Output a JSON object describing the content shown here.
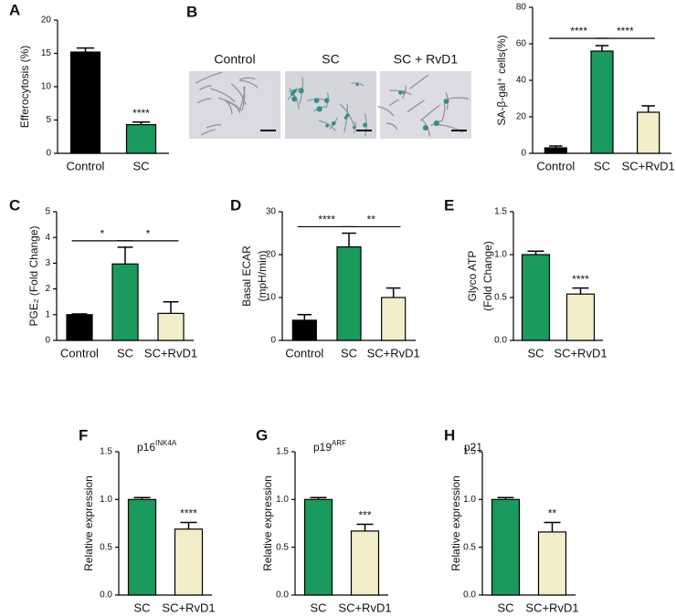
{
  "chart_data": [
    {
      "type": "bar",
      "panel": "A",
      "ylabel": "Efferocytosis (%)",
      "categories": [
        "Control",
        "SC"
      ],
      "values": [
        15.2,
        4.3
      ],
      "errors": [
        0.6,
        0.4
      ],
      "colors": [
        "#000000",
        "#1a9a5c"
      ],
      "ylim": [
        0,
        20
      ],
      "yticks": [
        0,
        5,
        10,
        15,
        20
      ],
      "value_annotations": [
        null,
        "****"
      ]
    },
    {
      "type": "bar",
      "ylabel": "SA-β-gal⁺ cells(%)",
      "categories": [
        "Control",
        "SC",
        "SC+RvD1"
      ],
      "values": [
        3,
        56,
        22.5
      ],
      "errors": [
        1,
        3,
        3.5
      ],
      "colors": [
        "#000000",
        "#1a9a5c",
        "#f3edc9"
      ],
      "ylim": [
        0,
        80
      ],
      "yticks": [
        0,
        20,
        40,
        60,
        80
      ],
      "comparisons": [
        {
          "between": [
            "Control",
            "SC"
          ],
          "label": "****"
        },
        {
          "between": [
            "SC",
            "SC+RvD1"
          ],
          "label": "****"
        }
      ]
    },
    {
      "type": "bar",
      "panel": "C",
      "ylabel": "PGE₂ (Fold Change)",
      "categories": [
        "Control",
        "SC",
        "SC+RvD1"
      ],
      "values": [
        1.0,
        2.97,
        1.05
      ],
      "errors": [
        0.03,
        0.65,
        0.45
      ],
      "colors": [
        "#000000",
        "#1a9a5c",
        "#f3edc9"
      ],
      "ylim": [
        0,
        5
      ],
      "yticks": [
        0,
        1,
        2,
        3,
        4,
        5
      ],
      "comparisons": [
        {
          "between": [
            "Control",
            "SC"
          ],
          "label": "*"
        },
        {
          "between": [
            "SC",
            "SC+RvD1"
          ],
          "label": "*"
        }
      ]
    },
    {
      "type": "bar",
      "panel": "D",
      "ylabel": [
        "Basal ECAR",
        "(mpH/min)"
      ],
      "categories": [
        "Control",
        "SC",
        "SC+RvD1"
      ],
      "values": [
        4.7,
        21.8,
        10
      ],
      "errors": [
        1.3,
        3.2,
        2.2
      ],
      "colors": [
        "#000000",
        "#1a9a5c",
        "#f3edc9"
      ],
      "ylim": [
        0,
        30
      ],
      "yticks": [
        0,
        10,
        20,
        30
      ],
      "comparisons": [
        {
          "between": [
            "Control",
            "SC"
          ],
          "label": "****"
        },
        {
          "between": [
            "SC",
            "SC+RvD1"
          ],
          "label": "**"
        }
      ]
    },
    {
      "type": "bar",
      "panel": "E",
      "ylabel": [
        "Glyco ATP",
        "(Fold Change)"
      ],
      "categories": [
        "SC",
        "SC+RvD1"
      ],
      "values": [
        1.0,
        0.54
      ],
      "errors": [
        0.04,
        0.07
      ],
      "colors": [
        "#1a9a5c",
        "#f3edc9"
      ],
      "ylim": [
        0,
        1.5
      ],
      "yticks": [
        {
          "value": 0,
          "label": "0.0"
        },
        0.5,
        {
          "value": 1,
          "label": "1.0"
        },
        1.5
      ],
      "value_annotations": [
        null,
        "****"
      ]
    },
    {
      "type": "bar",
      "panel": "F",
      "title": "p16",
      "title_sup": "INK4A",
      "ylabel": "Relative expression",
      "categories": [
        "SC",
        "SC+RvD1"
      ],
      "values": [
        1.0,
        0.69
      ],
      "errors": [
        0.02,
        0.07
      ],
      "colors": [
        "#1a9a5c",
        "#f3edc9"
      ],
      "ylim": [
        0,
        1.5
      ],
      "yticks": [
        {
          "value": 0,
          "label": "0.0"
        },
        0.5,
        {
          "value": 1,
          "label": "1.0"
        },
        1.5
      ],
      "value_annotations": [
        null,
        "****"
      ]
    },
    {
      "type": "bar",
      "panel": "G",
      "title": "p19",
      "title_sup": "ARF",
      "ylabel": "Relative expression",
      "categories": [
        "SC",
        "SC+RvD1"
      ],
      "values": [
        1.0,
        0.67
      ],
      "errors": [
        0.02,
        0.07
      ],
      "colors": [
        "#1a9a5c",
        "#f3edc9"
      ],
      "ylim": [
        0,
        1.5
      ],
      "yticks": [
        {
          "value": 0,
          "label": "0.0"
        },
        0.5,
        {
          "value": 1,
          "label": "1.0"
        },
        1.5
      ],
      "value_annotations": [
        null,
        "***"
      ]
    },
    {
      "type": "bar",
      "panel": "H",
      "title": "p21",
      "ylabel": "Relative expression",
      "categories": [
        "SC",
        "SC+RvD1"
      ],
      "values": [
        1.0,
        0.66
      ],
      "errors": [
        0.02,
        0.1
      ],
      "colors": [
        "#1a9a5c",
        "#f3edc9"
      ],
      "ylim": [
        0,
        1.5
      ],
      "yticks": [
        {
          "value": 0,
          "label": "0.0"
        },
        0.5,
        {
          "value": 1,
          "label": "1.0"
        },
        1.5
      ],
      "value_annotations": [
        null,
        "**"
      ]
    }
  ],
  "micrographs": {
    "panel": "B",
    "labels": [
      "Control",
      "SC",
      "SC + RvD1"
    ]
  }
}
